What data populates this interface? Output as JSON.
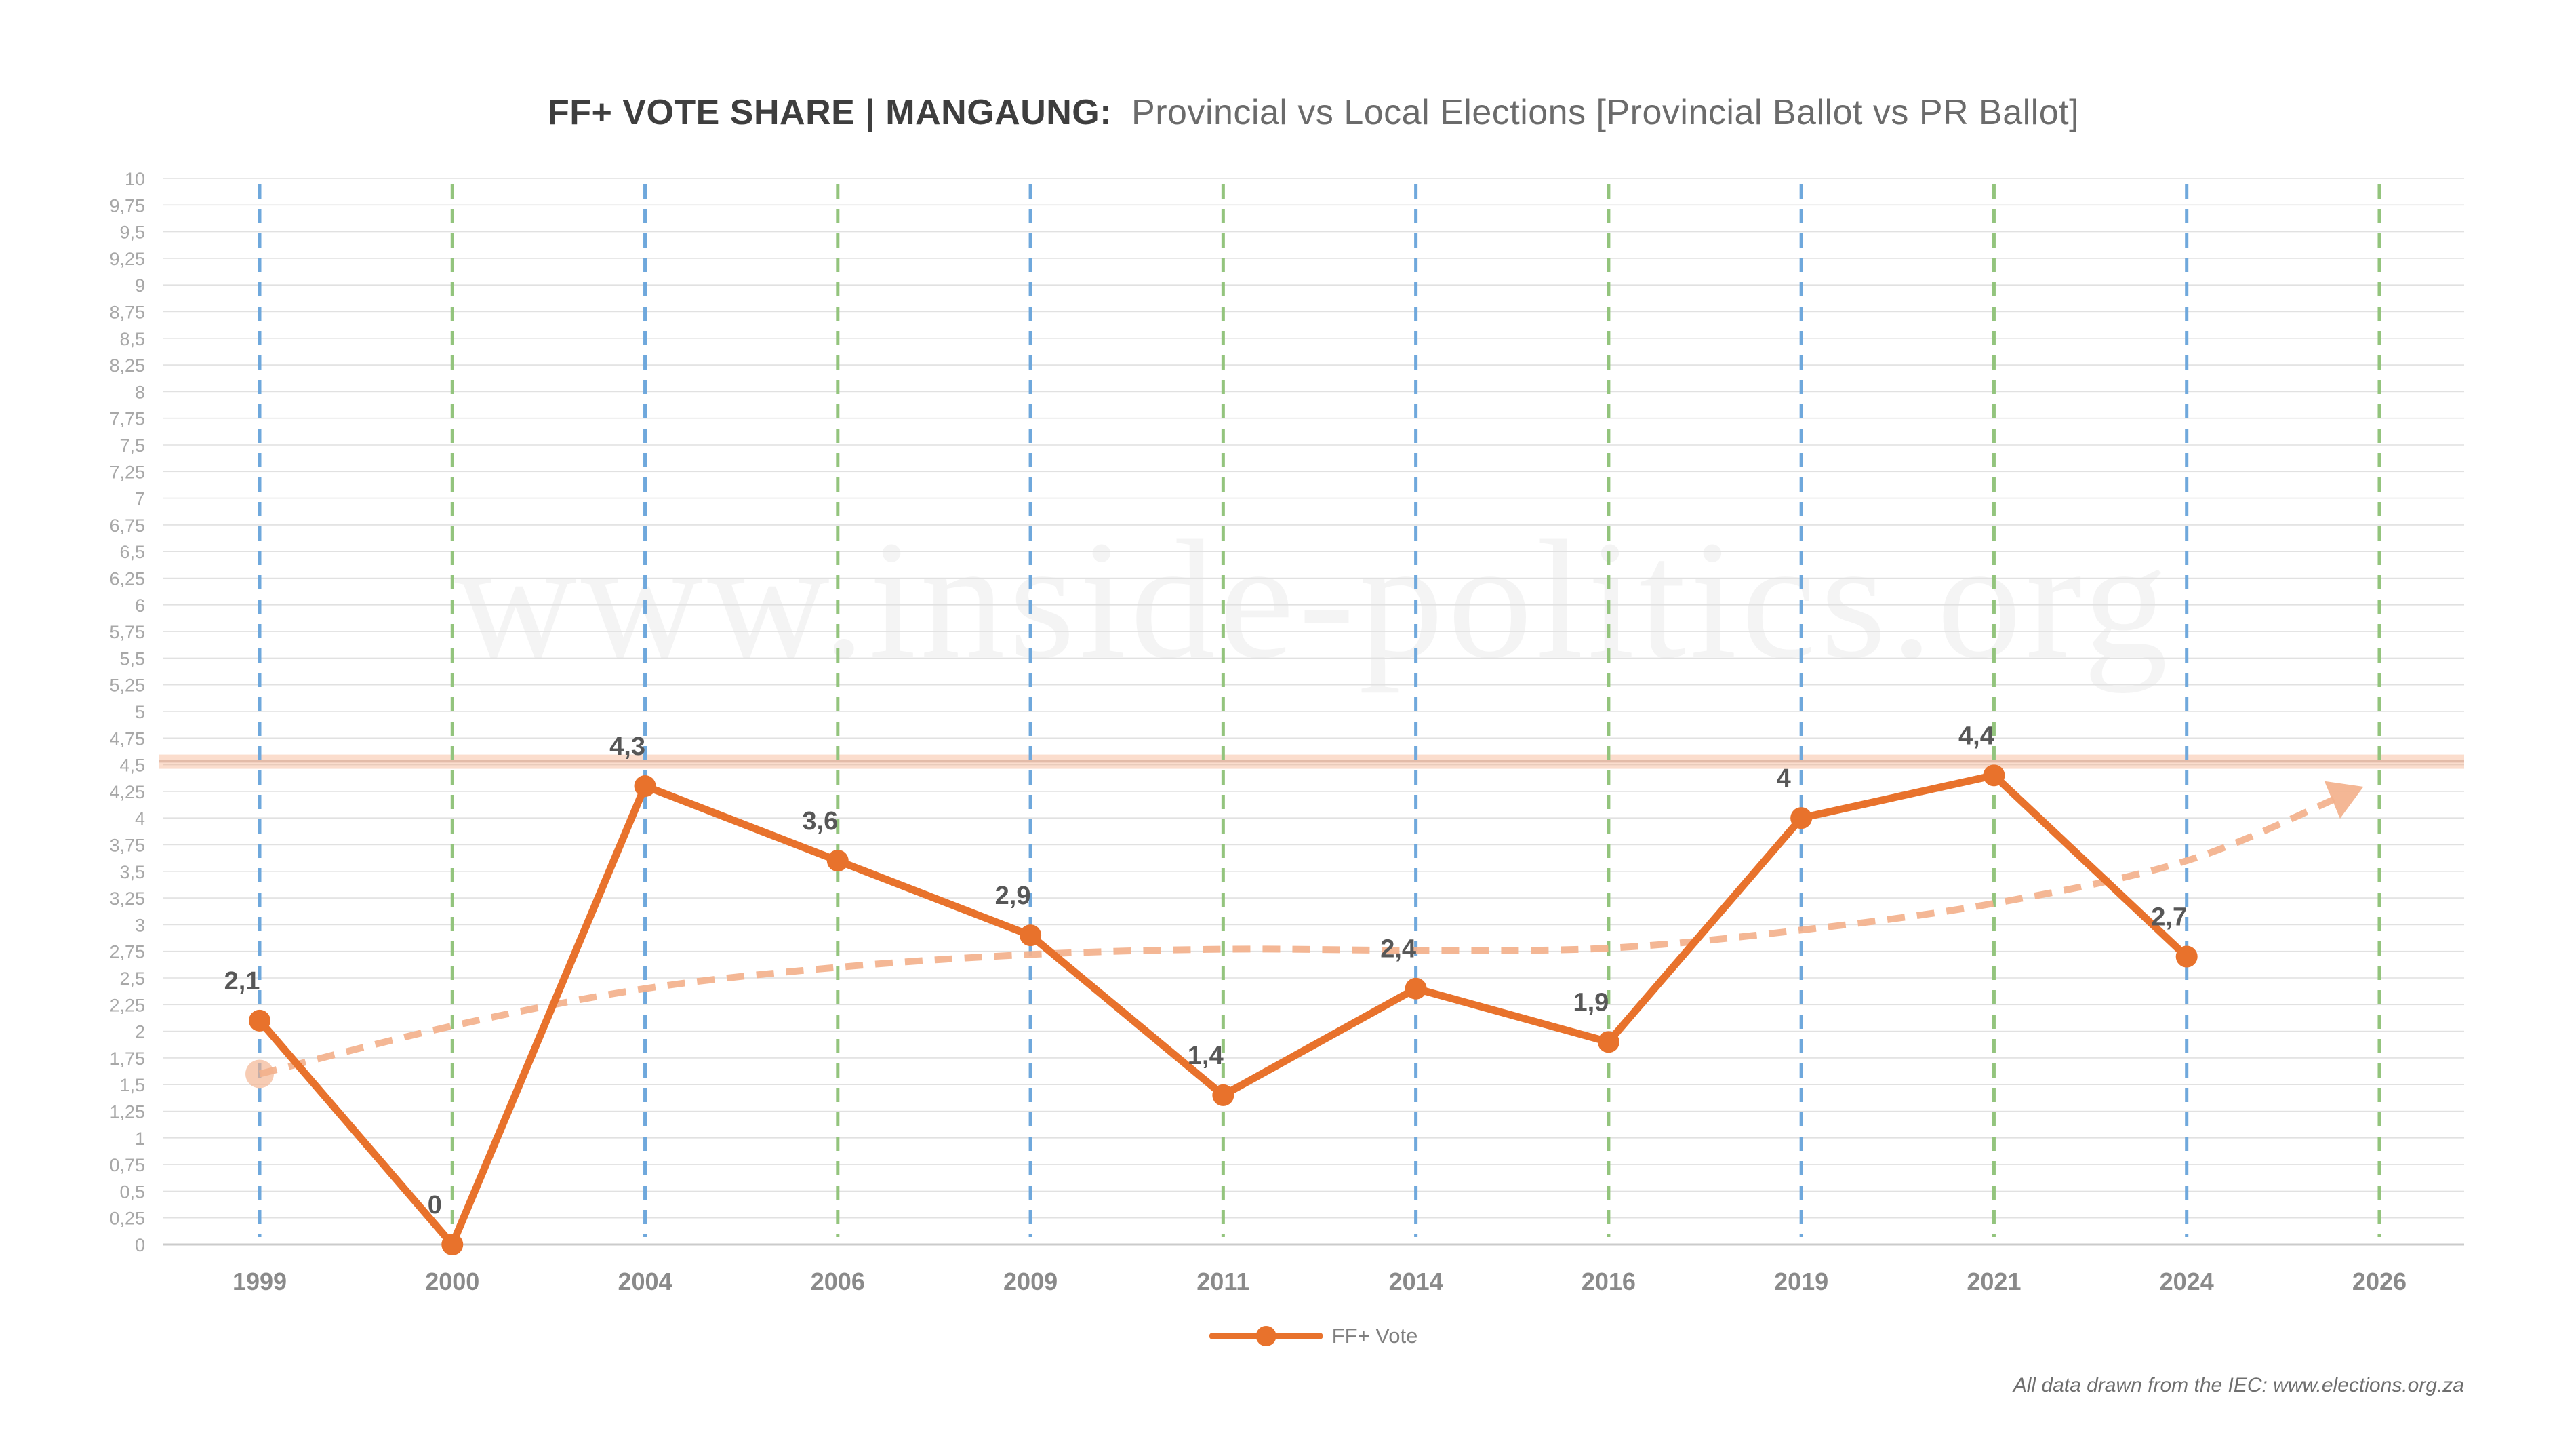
{
  "page": {
    "title_main": "FF+ VOTE SHARE | MANGAUNG:",
    "title_sub": "Provincial vs Local Elections [Provincial Ballot vs PR Ballot]",
    "watermark": "www.inside-politics.org",
    "footer_note": "All data drawn from the IEC: www.elections.org.za"
  },
  "legend": {
    "series_label": "FF+ Vote"
  },
  "colors": {
    "series_orange": "#E8722C",
    "trendline_salmon": "#F3B18C",
    "threshold_band_fill": "#F6AD88",
    "threshold_band_line": "#E3BBA8",
    "provincial_guide_blue": "#6FA8DC",
    "local_guide_green": "#93C47D",
    "gridline_gray": "#E1E1E1",
    "axis_line_gray": "#CBCBCB",
    "data_label_gray": "#575757",
    "ytick_label_gray": "#A8A8A8",
    "xtick_label_gray": "#8A8A8A",
    "legend_text_gray": "#7F7F7F"
  },
  "chart_data": {
    "type": "line",
    "title": "FF+ VOTE SHARE | MANGAUNG: Provincial vs Local Elections [Provincial Ballot vs PR Ballot]",
    "categories": [
      "1999",
      "2000",
      "2004",
      "2006",
      "2009",
      "2011",
      "2014",
      "2016",
      "2019",
      "2021",
      "2024",
      "2026"
    ],
    "category_election_type": [
      "provincial",
      "local",
      "provincial",
      "local",
      "provincial",
      "local",
      "provincial",
      "local",
      "provincial",
      "local",
      "provincial",
      "local"
    ],
    "series": [
      {
        "name": "FF+ Vote",
        "values": [
          2.1,
          0,
          4.3,
          3.6,
          2.9,
          1.4,
          2.4,
          1.9,
          4,
          4.4,
          2.7,
          null
        ],
        "data_labels": [
          "2,1",
          "0",
          "4,3",
          "3,6",
          "2,9",
          "1,4",
          "2,4",
          "1,9",
          "4",
          "4,4",
          "2,7"
        ]
      }
    ],
    "trendline": {
      "style": "dashed",
      "points": [
        [
          0,
          1.6
        ],
        [
          1,
          2.05
        ],
        [
          2,
          2.4
        ],
        [
          3,
          2.6
        ],
        [
          4,
          2.72
        ],
        [
          5,
          2.77
        ],
        [
          6,
          2.76
        ],
        [
          7,
          2.78
        ],
        [
          8,
          2.95
        ],
        [
          9,
          3.2
        ],
        [
          10,
          3.6
        ],
        [
          10.82,
          4.22
        ]
      ],
      "arrow_at_end": true,
      "start_marker": true
    },
    "reference_band": {
      "value": 4.5
    },
    "xlabel": "",
    "ylabel": "",
    "ylim": [
      0,
      10
    ],
    "ytick_step": 0.25,
    "decimal_separator": ",",
    "grid": true,
    "legend_position": "bottom"
  }
}
